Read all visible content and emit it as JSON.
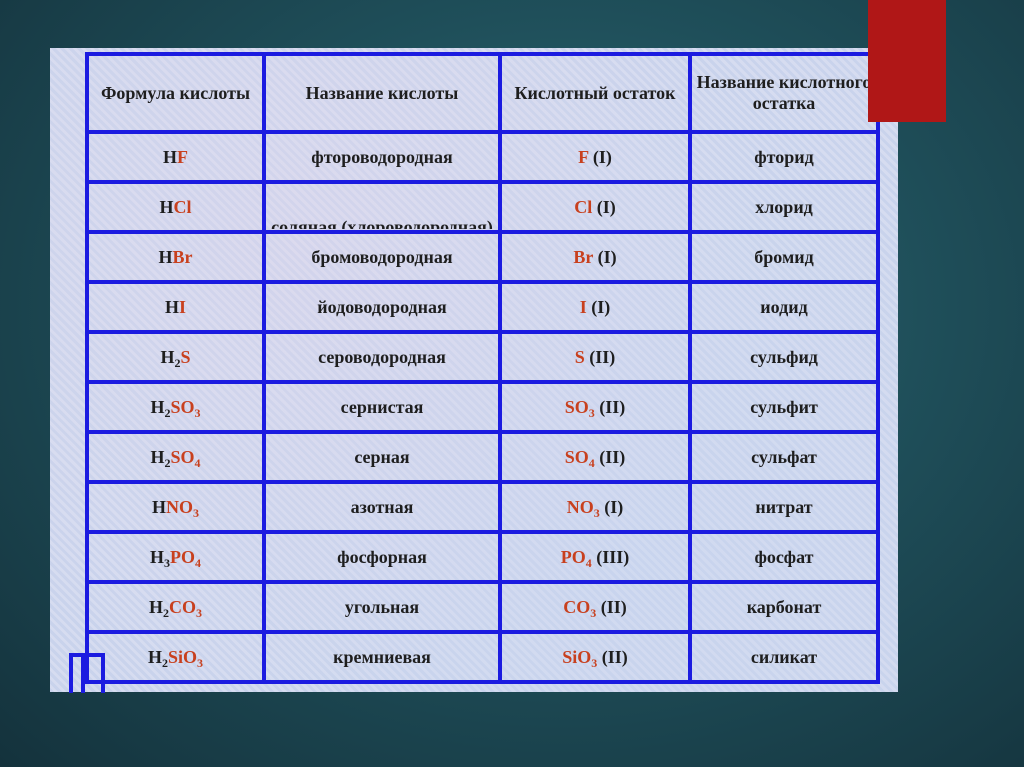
{
  "colors": {
    "grid": "#1b1be0",
    "accent_red": "#b01717",
    "formula_red": "#c8401e",
    "text": "#1e1e1e"
  },
  "table": {
    "headers": [
      "Формула кислоты",
      "Название кислоты",
      "Кислотный остаток",
      "Название кислотного остатка"
    ],
    "rows": [
      {
        "formula": [
          [
            "H",
            0,
            0
          ],
          [
            "F",
            1,
            0
          ]
        ],
        "name": "фтороводородная",
        "residue": [
          [
            "F",
            1,
            0
          ],
          [
            " (I)",
            0,
            0
          ]
        ],
        "residue_name": "фторид"
      },
      {
        "formula": [
          [
            "H",
            0,
            0
          ],
          [
            "Cl",
            1,
            0
          ]
        ],
        "name": "соляная (хлороводородная)",
        "residue": [
          [
            "Cl",
            1,
            0
          ],
          [
            " (I)",
            0,
            0
          ]
        ],
        "residue_name": "хлорид"
      },
      {
        "formula": [
          [
            "H",
            0,
            0
          ],
          [
            "Br",
            1,
            0
          ]
        ],
        "name": "бромоводородная",
        "residue": [
          [
            "Br",
            1,
            0
          ],
          [
            " (I)",
            0,
            0
          ]
        ],
        "residue_name": "бромид"
      },
      {
        "formula": [
          [
            "H",
            0,
            0
          ],
          [
            "I",
            1,
            0
          ]
        ],
        "name": "йодоводородная",
        "residue": [
          [
            "I",
            1,
            0
          ],
          [
            " (I)",
            0,
            0
          ]
        ],
        "residue_name": "иодид"
      },
      {
        "formula": [
          [
            "H",
            0,
            0
          ],
          [
            "2",
            0,
            1
          ],
          [
            "S",
            1,
            0
          ]
        ],
        "name": "сероводородная",
        "residue": [
          [
            "S",
            1,
            0
          ],
          [
            " (II)",
            0,
            0
          ]
        ],
        "residue_name": "сульфид"
      },
      {
        "formula": [
          [
            "H",
            0,
            0
          ],
          [
            "2",
            0,
            1
          ],
          [
            "SO",
            1,
            0
          ],
          [
            "3",
            1,
            1
          ]
        ],
        "name": "сернистая",
        "residue": [
          [
            "SO",
            1,
            0
          ],
          [
            "3",
            1,
            1
          ],
          [
            " (II)",
            0,
            0
          ]
        ],
        "residue_name": "сульфит"
      },
      {
        "formula": [
          [
            "H",
            0,
            0
          ],
          [
            "2",
            0,
            1
          ],
          [
            "SO",
            1,
            0
          ],
          [
            "4",
            1,
            1
          ]
        ],
        "name": "серная",
        "residue": [
          [
            "SO",
            1,
            0
          ],
          [
            "4",
            1,
            1
          ],
          [
            " (II)",
            0,
            0
          ]
        ],
        "residue_name": "сульфат"
      },
      {
        "formula": [
          [
            "H",
            0,
            0
          ],
          [
            "NO",
            1,
            0
          ],
          [
            "3",
            1,
            1
          ]
        ],
        "name": "азотная",
        "residue": [
          [
            "NO",
            1,
            0
          ],
          [
            "3",
            1,
            1
          ],
          [
            " (I)",
            0,
            0
          ]
        ],
        "residue_name": "нитрат"
      },
      {
        "formula": [
          [
            "H",
            0,
            0
          ],
          [
            "3",
            0,
            1
          ],
          [
            "PO",
            1,
            0
          ],
          [
            "4",
            1,
            1
          ]
        ],
        "name": "фосфорная",
        "residue": [
          [
            "PO",
            1,
            0
          ],
          [
            "4",
            1,
            1
          ],
          [
            " (III)",
            0,
            0
          ]
        ],
        "residue_name": "фосфат"
      },
      {
        "formula": [
          [
            "H",
            0,
            0
          ],
          [
            "2",
            0,
            1
          ],
          [
            "CO",
            1,
            0
          ],
          [
            "3",
            1,
            1
          ]
        ],
        "name": "угольная",
        "residue": [
          [
            "CO",
            1,
            0
          ],
          [
            "3",
            1,
            1
          ],
          [
            " (II)",
            0,
            0
          ]
        ],
        "residue_name": "карбонат"
      },
      {
        "formula": [
          [
            "H",
            0,
            0
          ],
          [
            "2",
            0,
            1
          ],
          [
            "SiO",
            1,
            0
          ],
          [
            "3",
            1,
            1
          ]
        ],
        "name": "кремниевая",
        "residue": [
          [
            "SiO",
            1,
            0
          ],
          [
            "3",
            1,
            1
          ],
          [
            " (II)",
            0,
            0
          ]
        ],
        "residue_name": "силикат"
      }
    ]
  }
}
